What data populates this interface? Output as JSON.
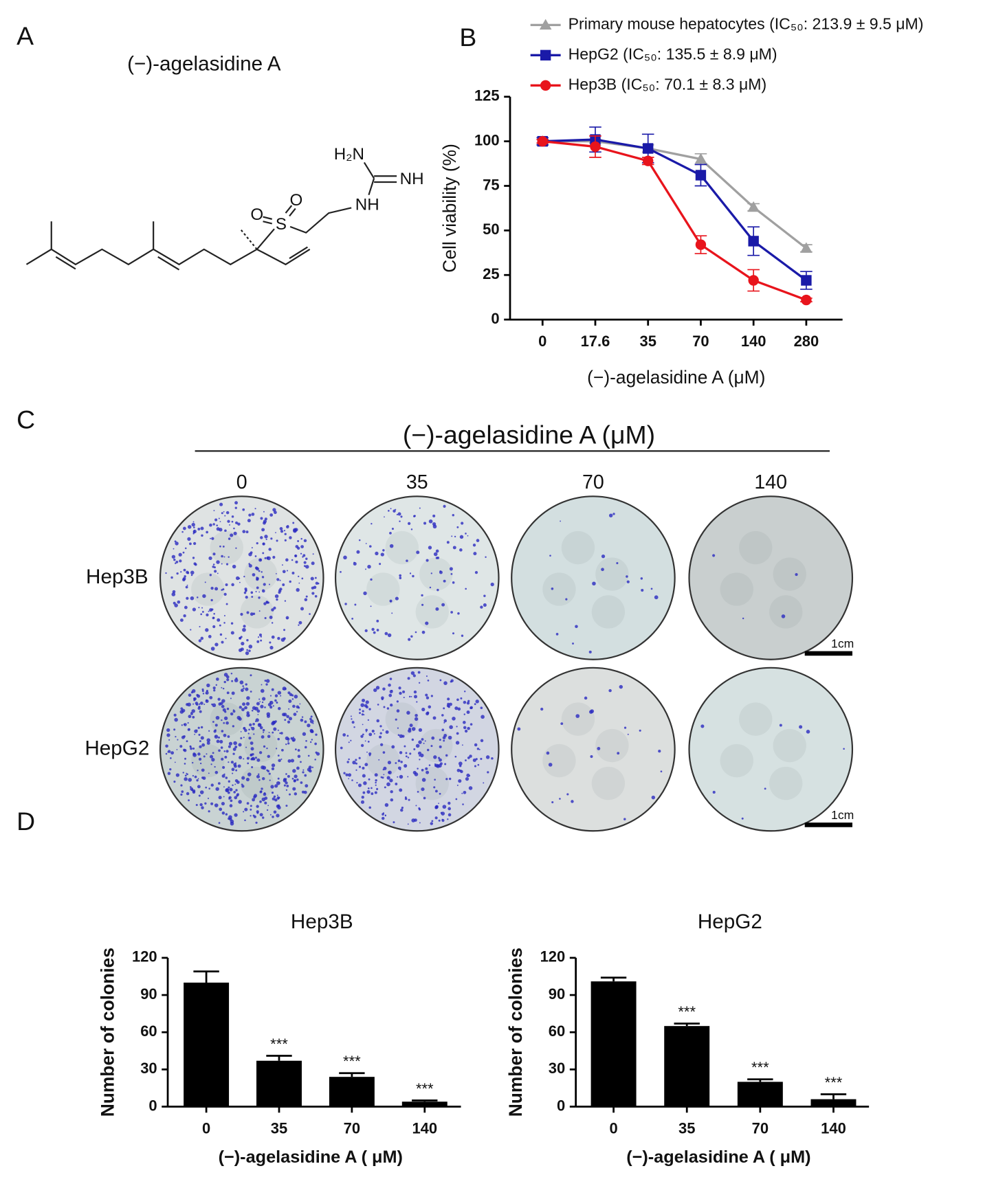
{
  "panel_labels": [
    "A",
    "B",
    "C",
    "D"
  ],
  "structure": {
    "title": "(−)-agelasidine A",
    "atoms": [
      "H₂N",
      "NH",
      "NH",
      "O",
      "O",
      "S"
    ]
  },
  "colony_assay": {
    "title": "(−)-agelasidine A (μM)",
    "concentrations": [
      "0",
      "35",
      "70",
      "140"
    ],
    "cell_lines": [
      "Hep3B",
      "HepG2"
    ],
    "scale_bars": [
      "1cm",
      "1cm"
    ]
  },
  "chart_data": [
    {
      "type": "line",
      "x_label": "(−)-agelasidine A  (μM)",
      "y_label": "Cell viability (%)",
      "categories": [
        "0",
        "17.6",
        "35",
        "70",
        "140",
        "280"
      ],
      "ylim": [
        0,
        125
      ],
      "yticks": [
        0,
        25,
        50,
        75,
        100,
        125
      ],
      "series": [
        {
          "name": "Primary mouse hepatocytes (IC₅₀: 213.9 ± 9.5 μM)",
          "color": "#a0a0a0",
          "marker": "triangle",
          "values": [
            100,
            100,
            96,
            90,
            63,
            40
          ],
          "errors": [
            1,
            1,
            2,
            3,
            2,
            2
          ]
        },
        {
          "name": "HepG2 (IC₅₀: 135.5 ± 8.9 μM)",
          "color": "#1a1aa8",
          "marker": "square",
          "values": [
            100,
            101,
            96,
            81,
            44,
            22
          ],
          "errors": [
            2,
            7,
            8,
            6,
            8,
            5
          ]
        },
        {
          "name": "Hep3B (IC₅₀: 70.1 ± 8.3 μM)",
          "color": "#e8141c",
          "marker": "circle",
          "values": [
            100,
            97,
            89,
            42,
            22,
            11
          ],
          "errors": [
            1,
            6,
            2,
            5,
            6,
            1
          ]
        }
      ]
    },
    {
      "type": "bar",
      "title": "Hep3B",
      "x_label": "(−)-agelasidine A ( μM)",
      "y_label": "Number of colonies",
      "categories": [
        "0",
        "35",
        "70",
        "140"
      ],
      "values": [
        100,
        37,
        24,
        4
      ],
      "errors": [
        9,
        4,
        3,
        1
      ],
      "annotations": [
        null,
        "***",
        "***",
        "***"
      ],
      "color": "#000000",
      "ylim": [
        0,
        120
      ],
      "yticks": [
        0,
        30,
        60,
        90,
        120
      ]
    },
    {
      "type": "bar",
      "title": "HepG2",
      "x_label": "(−)-agelasidine A (  μM)",
      "y_label": "Number of colonies",
      "categories": [
        "0",
        "35",
        "70",
        "140"
      ],
      "values": [
        101,
        65,
        20,
        6
      ],
      "errors": [
        3,
        2,
        2,
        4
      ],
      "annotations": [
        null,
        "***",
        "***",
        "***"
      ],
      "color": "#000000",
      "ylim": [
        0,
        120
      ],
      "yticks": [
        0,
        30,
        60,
        90,
        120
      ]
    }
  ]
}
